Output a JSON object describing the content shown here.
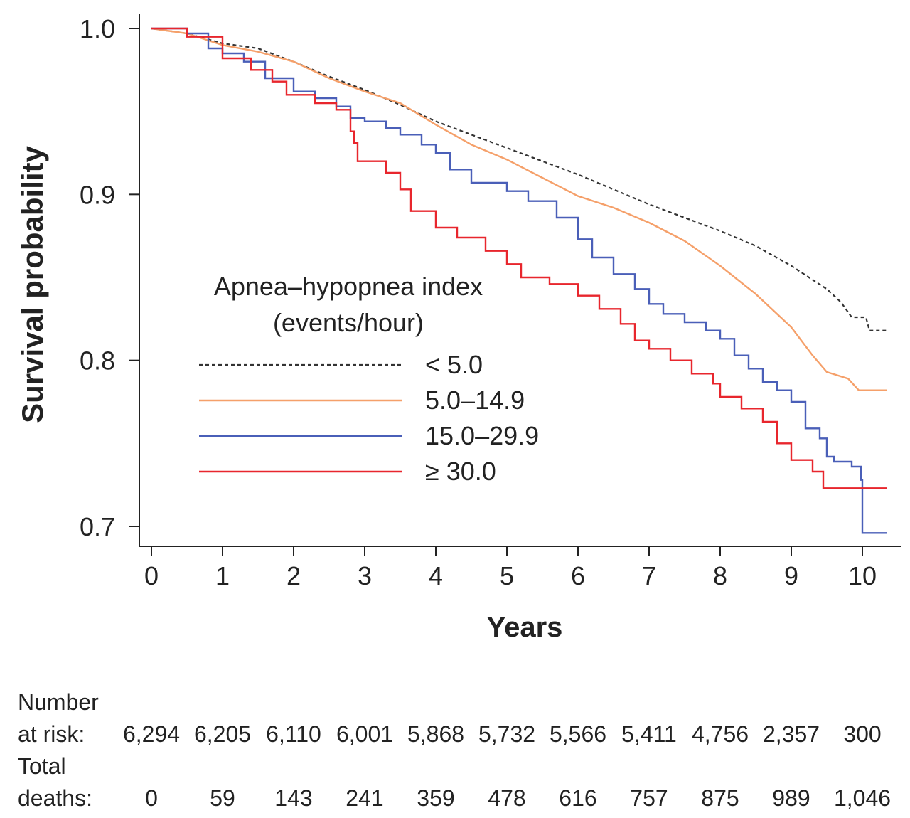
{
  "chart_data": {
    "type": "line",
    "ylabel": "Survival probability",
    "xlabel": "Years",
    "xlim": [
      0,
      10.4
    ],
    "ylim": [
      0.69,
      1.0
    ],
    "x_ticks": [
      0,
      1,
      2,
      3,
      4,
      5,
      6,
      7,
      8,
      9,
      10
    ],
    "x_tick_labels": [
      "0",
      "1",
      "2",
      "3",
      "4",
      "5",
      "6",
      "7",
      "8",
      "9",
      "10"
    ],
    "y_ticks": [
      0.7,
      0.8,
      0.9,
      1.0
    ],
    "y_tick_labels": [
      "0.7",
      "0.8",
      "0.9",
      "1.0"
    ],
    "grid": false,
    "legend": {
      "title_line1": "Apnea–hypopnea index",
      "title_line2": "(events/hour)",
      "position": "center-left"
    },
    "series": [
      {
        "name": "< 5.0",
        "color": "#333333",
        "dash": "dotted",
        "step": false,
        "points": [
          [
            0,
            1.0
          ],
          [
            0.5,
            0.997
          ],
          [
            1,
            0.991
          ],
          [
            1.5,
            0.988
          ],
          [
            2,
            0.98
          ],
          [
            2.5,
            0.971
          ],
          [
            3,
            0.963
          ],
          [
            3.5,
            0.954
          ],
          [
            3.8,
            0.948
          ],
          [
            4,
            0.944
          ],
          [
            4.5,
            0.936
          ],
          [
            5,
            0.928
          ],
          [
            5.5,
            0.92
          ],
          [
            6,
            0.912
          ],
          [
            6.5,
            0.903
          ],
          [
            7,
            0.894
          ],
          [
            7.5,
            0.886
          ],
          [
            8,
            0.878
          ],
          [
            8.5,
            0.869
          ],
          [
            9,
            0.857
          ],
          [
            9.5,
            0.843
          ],
          [
            9.7,
            0.835
          ],
          [
            9.85,
            0.826
          ],
          [
            10.05,
            0.826
          ],
          [
            10.1,
            0.818
          ],
          [
            10.35,
            0.818
          ]
        ]
      },
      {
        "name": "5.0–14.9",
        "color": "#f5a06a",
        "dash": "solid",
        "step": false,
        "points": [
          [
            0,
            1.0
          ],
          [
            0.5,
            0.997
          ],
          [
            1,
            0.99
          ],
          [
            1.5,
            0.986
          ],
          [
            2,
            0.98
          ],
          [
            2.5,
            0.97
          ],
          [
            3,
            0.962
          ],
          [
            3.5,
            0.955
          ],
          [
            4,
            0.942
          ],
          [
            4.5,
            0.93
          ],
          [
            5,
            0.921
          ],
          [
            5.5,
            0.91
          ],
          [
            6,
            0.899
          ],
          [
            6.5,
            0.892
          ],
          [
            7,
            0.883
          ],
          [
            7.5,
            0.872
          ],
          [
            8,
            0.857
          ],
          [
            8.5,
            0.84
          ],
          [
            9,
            0.82
          ],
          [
            9.3,
            0.803
          ],
          [
            9.5,
            0.793
          ],
          [
            9.8,
            0.789
          ],
          [
            9.95,
            0.782
          ],
          [
            10.35,
            0.782
          ]
        ]
      },
      {
        "name": "15.0–29.9",
        "color": "#4a5fb8",
        "dash": "solid",
        "step": true,
        "points": [
          [
            0,
            1.0
          ],
          [
            0.5,
            0.997
          ],
          [
            0.8,
            0.988
          ],
          [
            1,
            0.985
          ],
          [
            1.3,
            0.98
          ],
          [
            1.6,
            0.97
          ],
          [
            2,
            0.962
          ],
          [
            2.3,
            0.958
          ],
          [
            2.6,
            0.953
          ],
          [
            2.8,
            0.946
          ],
          [
            3,
            0.944
          ],
          [
            3.3,
            0.94
          ],
          [
            3.5,
            0.936
          ],
          [
            3.8,
            0.93
          ],
          [
            4,
            0.925
          ],
          [
            4.2,
            0.915
          ],
          [
            4.5,
            0.907
          ],
          [
            5,
            0.902
          ],
          [
            5.3,
            0.896
          ],
          [
            5.7,
            0.886
          ],
          [
            6,
            0.873
          ],
          [
            6.2,
            0.862
          ],
          [
            6.5,
            0.852
          ],
          [
            6.8,
            0.843
          ],
          [
            7,
            0.834
          ],
          [
            7.2,
            0.828
          ],
          [
            7.5,
            0.823
          ],
          [
            7.8,
            0.818
          ],
          [
            8,
            0.813
          ],
          [
            8.2,
            0.803
          ],
          [
            8.4,
            0.795
          ],
          [
            8.6,
            0.787
          ],
          [
            8.8,
            0.782
          ],
          [
            9,
            0.775
          ],
          [
            9.2,
            0.759
          ],
          [
            9.4,
            0.753
          ],
          [
            9.5,
            0.742
          ],
          [
            9.6,
            0.739
          ],
          [
            9.85,
            0.736
          ],
          [
            9.98,
            0.728
          ],
          [
            10.0,
            0.696
          ],
          [
            10.35,
            0.696
          ]
        ]
      },
      {
        "name": "≥ 30.0",
        "color": "#e8262d",
        "dash": "solid",
        "step": true,
        "points": [
          [
            0,
            1.0
          ],
          [
            0.5,
            0.995
          ],
          [
            1,
            0.982
          ],
          [
            1.4,
            0.975
          ],
          [
            1.7,
            0.968
          ],
          [
            1.9,
            0.96
          ],
          [
            2.3,
            0.955
          ],
          [
            2.6,
            0.951
          ],
          [
            2.8,
            0.938
          ],
          [
            2.85,
            0.931
          ],
          [
            2.9,
            0.92
          ],
          [
            3.3,
            0.913
          ],
          [
            3.5,
            0.903
          ],
          [
            3.65,
            0.89
          ],
          [
            4,
            0.88
          ],
          [
            4.3,
            0.874
          ],
          [
            4.7,
            0.866
          ],
          [
            5,
            0.858
          ],
          [
            5.2,
            0.85
          ],
          [
            5.6,
            0.846
          ],
          [
            6,
            0.839
          ],
          [
            6.3,
            0.831
          ],
          [
            6.6,
            0.822
          ],
          [
            6.8,
            0.812
          ],
          [
            7,
            0.807
          ],
          [
            7.3,
            0.8
          ],
          [
            7.6,
            0.792
          ],
          [
            7.9,
            0.786
          ],
          [
            8,
            0.778
          ],
          [
            8.3,
            0.771
          ],
          [
            8.6,
            0.763
          ],
          [
            8.8,
            0.75
          ],
          [
            9,
            0.74
          ],
          [
            9.3,
            0.733
          ],
          [
            9.45,
            0.723
          ],
          [
            10.35,
            0.723
          ]
        ]
      }
    ]
  },
  "risk_table": {
    "number_at_risk_label_line1": "Number",
    "number_at_risk_label_line2": "at risk:",
    "number_at_risk": [
      "6,294",
      "6,205",
      "6,110",
      "6,001",
      "5,868",
      "5,732",
      "5,566",
      "5,411",
      "4,756",
      "2,357",
      "300"
    ],
    "total_deaths_label_line1": "Total",
    "total_deaths_label_line2": "deaths:",
    "total_deaths": [
      "0",
      "59",
      "143",
      "241",
      "359",
      "478",
      "616",
      "757",
      "875",
      "989",
      "1,046"
    ]
  }
}
